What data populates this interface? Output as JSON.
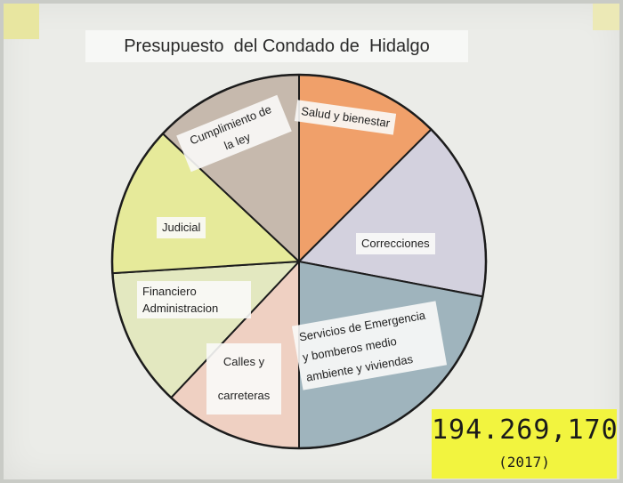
{
  "chart_data": {
    "type": "pie",
    "title": "Presupuesto  del Condado de  Hidalgo",
    "slices": [
      {
        "label": "Salud y bienestar",
        "value": 12.5,
        "color": "#f0a06a"
      },
      {
        "label": "Correcciones",
        "value": 15.5,
        "color": "#d3d1de"
      },
      {
        "label": "Servicios de Emergencia y bomberos medio ambiente y viviendas",
        "value": 22.0,
        "color": "#9fb4bd"
      },
      {
        "label": "Calles y carreteras",
        "value": 12.0,
        "color": "#efd0c2"
      },
      {
        "label": "Financiero Administracion",
        "value": 12.0,
        "color": "#e3e8c0"
      },
      {
        "label": "Judicial",
        "value": 13.0,
        "color": "#e6ea9a"
      },
      {
        "label": "Cumplimiento de la ley",
        "value": 13.0,
        "color": "#c6b9ad"
      }
    ],
    "total": "194.269,170",
    "year": "(2017)"
  }
}
